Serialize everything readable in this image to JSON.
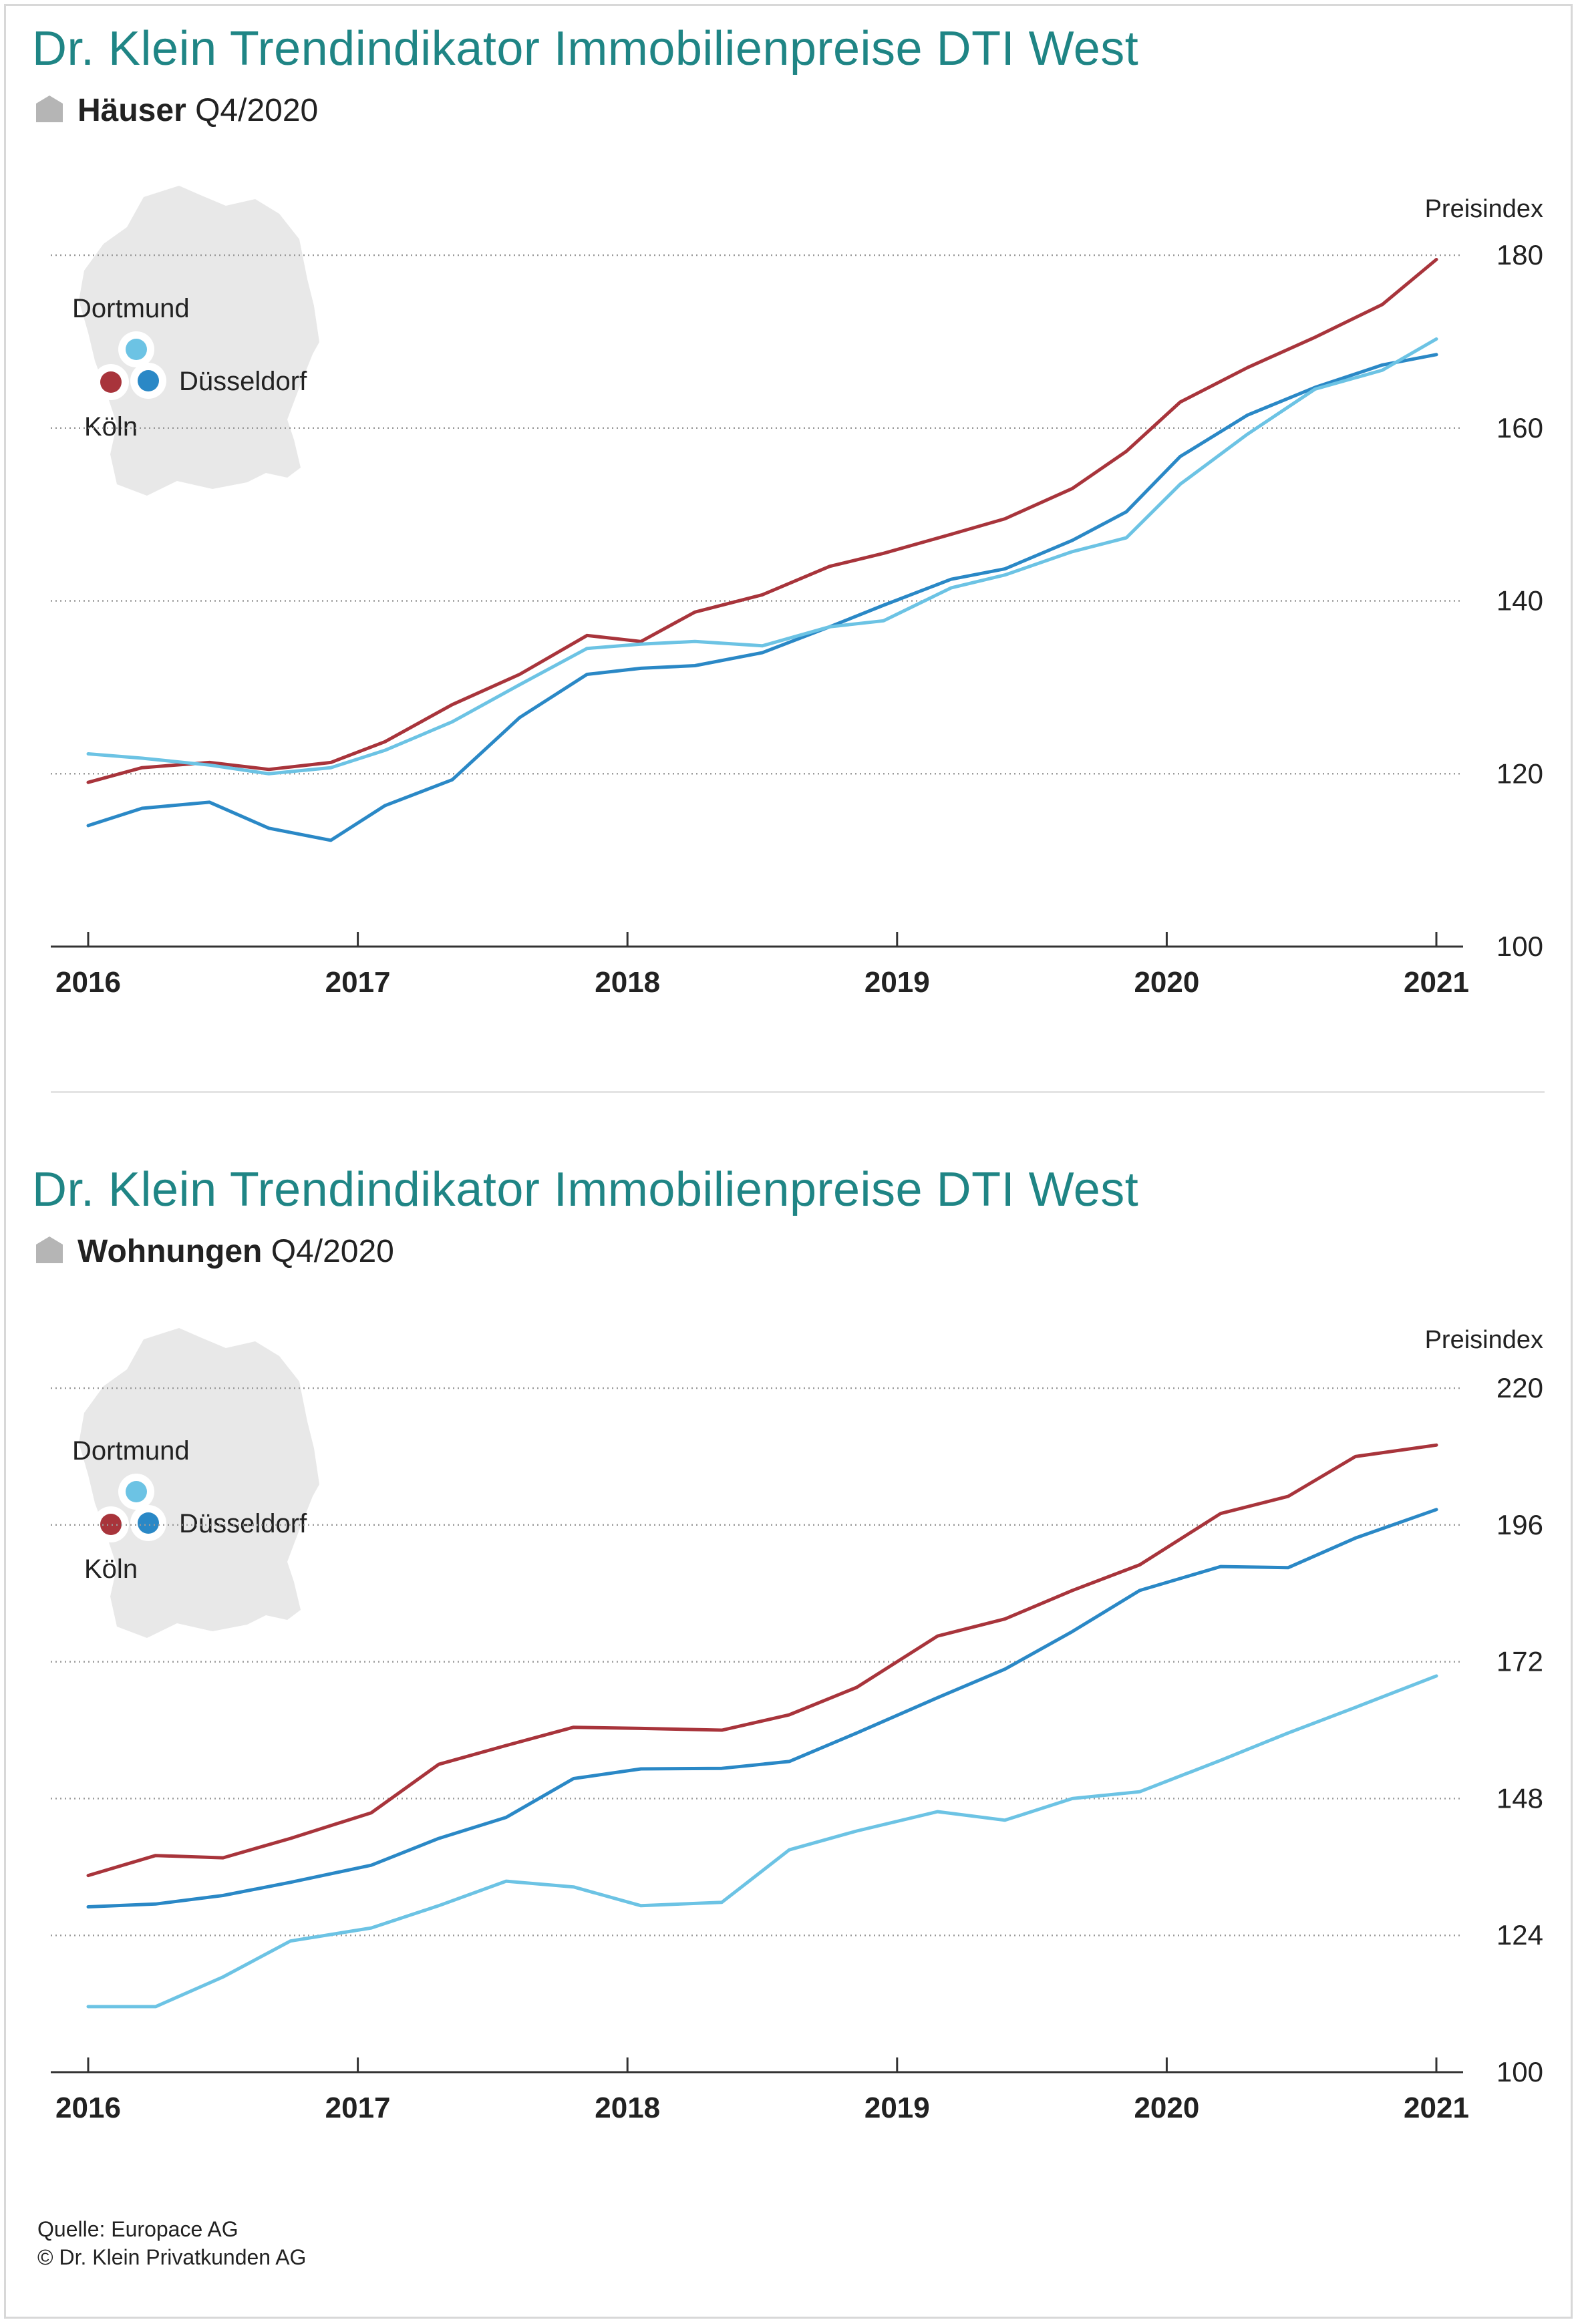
{
  "colors": {
    "title": "#1f8585",
    "koeln": "#a8343b",
    "duesseldorf": "#2a88c6",
    "dortmund": "#6cc3e4",
    "map": "#e8e8e8",
    "icon": "#b5b5b5"
  },
  "icon": "house-icon",
  "footer": {
    "source": "Quelle: Europace AG",
    "copyright": "© Dr. Klein Privatkunden AG"
  },
  "chart_data": [
    {
      "type": "line",
      "title": "Dr. Klein Trendindikator Immobilienpreise DTI West",
      "subtitle_bold": "Häuser",
      "subtitle_rest": "Q4/2020",
      "ylabel": "Preisindex",
      "ylim": [
        100,
        180
      ],
      "yticks": [
        100,
        120,
        140,
        160,
        180
      ],
      "xlim": [
        2016,
        2021
      ],
      "xticks": [
        "2016",
        "2017",
        "2018",
        "2019",
        "2020",
        "2021"
      ],
      "grid": "horizontal-dotted",
      "legend_labels": {
        "dortmund": "Dortmund",
        "duesseldorf": "Düsseldorf",
        "koeln": "Köln"
      },
      "series": [
        {
          "name": "Köln",
          "key": "koeln",
          "points": [
            [
              2016.0,
              119.0
            ],
            [
              2016.2,
              120.7
            ],
            [
              2016.45,
              121.3
            ],
            [
              2016.67,
              120.5
            ],
            [
              2016.9,
              121.3
            ],
            [
              2017.1,
              123.7
            ],
            [
              2017.35,
              128.0
            ],
            [
              2017.6,
              131.5
            ],
            [
              2017.85,
              136.0
            ],
            [
              2018.05,
              135.3
            ],
            [
              2018.25,
              138.7
            ],
            [
              2018.5,
              140.7
            ],
            [
              2018.75,
              144.0
            ],
            [
              2018.95,
              145.5
            ],
            [
              2019.2,
              147.7
            ],
            [
              2019.4,
              149.5
            ],
            [
              2019.65,
              153.0
            ],
            [
              2019.85,
              157.3
            ],
            [
              2020.05,
              163.0
            ],
            [
              2020.3,
              167.0
            ],
            [
              2020.55,
              170.5
            ],
            [
              2020.8,
              174.3
            ],
            [
              2021.0,
              179.5
            ]
          ]
        },
        {
          "name": "Düsseldorf",
          "key": "duesseldorf",
          "points": [
            [
              2016.0,
              114.0
            ],
            [
              2016.2,
              116.0
            ],
            [
              2016.45,
              116.7
            ],
            [
              2016.67,
              113.7
            ],
            [
              2016.9,
              112.3
            ],
            [
              2017.1,
              116.3
            ],
            [
              2017.35,
              119.3
            ],
            [
              2017.6,
              126.5
            ],
            [
              2017.85,
              131.5
            ],
            [
              2018.05,
              132.2
            ],
            [
              2018.25,
              132.5
            ],
            [
              2018.5,
              134.0
            ],
            [
              2018.75,
              137.0
            ],
            [
              2018.95,
              139.5
            ],
            [
              2019.2,
              142.5
            ],
            [
              2019.4,
              143.7
            ],
            [
              2019.65,
              147.0
            ],
            [
              2019.85,
              150.3
            ],
            [
              2020.05,
              156.7
            ],
            [
              2020.3,
              161.5
            ],
            [
              2020.55,
              164.7
            ],
            [
              2020.8,
              167.3
            ],
            [
              2021.0,
              168.5
            ]
          ]
        },
        {
          "name": "Dortmund",
          "key": "dortmund",
          "points": [
            [
              2016.0,
              122.3
            ],
            [
              2016.2,
              121.8
            ],
            [
              2016.45,
              121.0
            ],
            [
              2016.67,
              120.0
            ],
            [
              2016.9,
              120.7
            ],
            [
              2017.1,
              122.7
            ],
            [
              2017.35,
              126.0
            ],
            [
              2017.6,
              130.3
            ],
            [
              2017.85,
              134.5
            ],
            [
              2018.05,
              135.0
            ],
            [
              2018.25,
              135.3
            ],
            [
              2018.5,
              134.8
            ],
            [
              2018.75,
              137.0
            ],
            [
              2018.95,
              137.7
            ],
            [
              2019.2,
              141.5
            ],
            [
              2019.4,
              143.0
            ],
            [
              2019.65,
              145.7
            ],
            [
              2019.85,
              147.3
            ],
            [
              2020.05,
              153.5
            ],
            [
              2020.3,
              159.3
            ],
            [
              2020.55,
              164.5
            ],
            [
              2020.8,
              166.7
            ],
            [
              2021.0,
              170.3
            ]
          ]
        }
      ]
    },
    {
      "type": "line",
      "title": "Dr. Klein Trendindikator Immobilienpreise DTI West",
      "subtitle_bold": "Wohnungen",
      "subtitle_rest": "Q4/2020",
      "ylabel": "Preisindex",
      "ylim": [
        100,
        220
      ],
      "yticks": [
        100,
        124,
        148,
        172,
        196,
        220
      ],
      "xlim": [
        2016,
        2021
      ],
      "xticks": [
        "2016",
        "2017",
        "2018",
        "2019",
        "2020",
        "2021"
      ],
      "grid": "horizontal-dotted",
      "legend_labels": {
        "dortmund": "Dortmund",
        "duesseldorf": "Düsseldorf",
        "koeln": "Köln"
      },
      "series": [
        {
          "name": "Köln",
          "key": "koeln",
          "points": [
            [
              2016.0,
              134.5
            ],
            [
              2016.25,
              138.0
            ],
            [
              2016.5,
              137.6
            ],
            [
              2016.75,
              141.0
            ],
            [
              2017.05,
              145.5
            ],
            [
              2017.3,
              154.0
            ],
            [
              2017.55,
              157.3
            ],
            [
              2017.8,
              160.5
            ],
            [
              2018.05,
              160.3
            ],
            [
              2018.35,
              160.0
            ],
            [
              2018.6,
              162.7
            ],
            [
              2018.85,
              167.5
            ],
            [
              2019.15,
              176.5
            ],
            [
              2019.4,
              179.5
            ],
            [
              2019.65,
              184.5
            ],
            [
              2019.9,
              189.0
            ],
            [
              2020.2,
              198.0
            ],
            [
              2020.45,
              201.0
            ],
            [
              2020.7,
              208.0
            ],
            [
              2021.0,
              210.0
            ]
          ]
        },
        {
          "name": "Düsseldorf",
          "key": "duesseldorf",
          "points": [
            [
              2016.0,
              129.0
            ],
            [
              2016.25,
              129.5
            ],
            [
              2016.5,
              131.0
            ],
            [
              2016.75,
              133.3
            ],
            [
              2017.05,
              136.3
            ],
            [
              2017.3,
              141.0
            ],
            [
              2017.55,
              144.7
            ],
            [
              2017.8,
              151.5
            ],
            [
              2018.05,
              153.2
            ],
            [
              2018.35,
              153.3
            ],
            [
              2018.6,
              154.5
            ],
            [
              2018.85,
              159.5
            ],
            [
              2019.15,
              165.7
            ],
            [
              2019.4,
              170.7
            ],
            [
              2019.65,
              177.3
            ],
            [
              2019.9,
              184.5
            ],
            [
              2020.2,
              188.7
            ],
            [
              2020.45,
              188.5
            ],
            [
              2020.7,
              193.7
            ],
            [
              2021.0,
              198.7
            ]
          ]
        },
        {
          "name": "Dortmund",
          "key": "dortmund",
          "points": [
            [
              2016.0,
              111.5
            ],
            [
              2016.25,
              111.5
            ],
            [
              2016.5,
              116.7
            ],
            [
              2016.75,
              123.0
            ],
            [
              2017.05,
              125.3
            ],
            [
              2017.3,
              129.2
            ],
            [
              2017.55,
              133.5
            ],
            [
              2017.8,
              132.5
            ],
            [
              2018.05,
              129.2
            ],
            [
              2018.35,
              129.8
            ],
            [
              2018.6,
              139.0
            ],
            [
              2018.85,
              142.3
            ],
            [
              2019.15,
              145.7
            ],
            [
              2019.4,
              144.2
            ],
            [
              2019.65,
              148.0
            ],
            [
              2019.9,
              149.2
            ],
            [
              2020.2,
              154.7
            ],
            [
              2020.45,
              159.5
            ],
            [
              2020.7,
              164.0
            ],
            [
              2021.0,
              169.5
            ]
          ]
        }
      ]
    }
  ]
}
